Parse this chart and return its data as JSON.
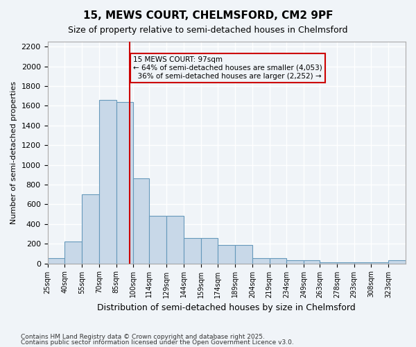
{
  "title": "15, MEWS COURT, CHELMSFORD, CM2 9PF",
  "subtitle": "Size of property relative to semi-detached houses in Chelmsford",
  "xlabel": "Distribution of semi-detached houses by size in Chelmsford",
  "ylabel": "Number of semi-detached properties",
  "property_size": 97,
  "property_label": "15 MEWS COURT: 97sqm",
  "pct_smaller": 64,
  "pct_larger": 36,
  "n_smaller": 4053,
  "n_larger": 2252,
  "bin_edges": [
    25,
    40,
    55,
    70,
    85,
    100,
    114,
    129,
    144,
    159,
    174,
    189,
    204,
    219,
    234,
    249,
    263,
    278,
    293,
    308,
    323
  ],
  "bar_heights": [
    50,
    220,
    700,
    1660,
    1640,
    860,
    480,
    480,
    260,
    260,
    185,
    185,
    50,
    50,
    35,
    35,
    10,
    10,
    10,
    10,
    30
  ],
  "bar_color": "#c8d8e8",
  "bar_edge_color": "#6699bb",
  "vline_color": "#cc0000",
  "vline_x": 97,
  "annotation_box_color": "#cc0000",
  "ylim": [
    0,
    2250
  ],
  "yticks": [
    0,
    200,
    400,
    600,
    800,
    1000,
    1200,
    1400,
    1600,
    1800,
    2000,
    2200
  ],
  "footnote1": "Contains HM Land Registry data © Crown copyright and database right 2025.",
  "footnote2": "Contains public sector information licensed under the Open Government Licence v3.0.",
  "background_color": "#f0f4f8",
  "grid_color": "#ffffff"
}
